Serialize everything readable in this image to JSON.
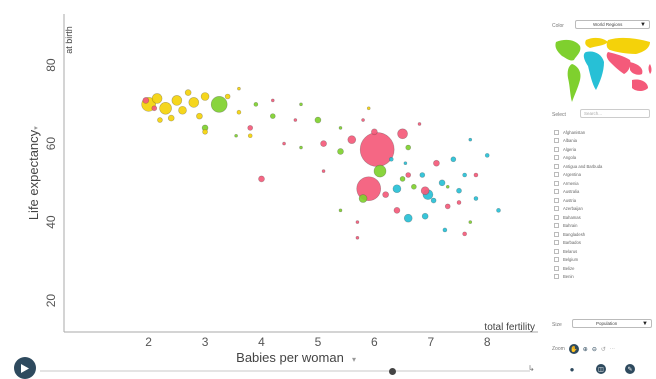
{
  "chart_data": {
    "type": "scatter",
    "xlabel": "Babies per woman",
    "xlabel_secondary": "total fertility",
    "ylabel": "Life expectancy",
    "ylabel_secondary": "at birth",
    "x_ticks": [
      2,
      3,
      4,
      5,
      6,
      7,
      8
    ],
    "y_ticks": [
      20,
      40,
      60,
      80
    ],
    "xlim": [
      0.5,
      8.9
    ],
    "ylim": [
      12,
      92
    ],
    "bubble_size": "population",
    "colors": {
      "yellow": "#f4d20a",
      "green": "#7fd02e",
      "red": "#f45a7a",
      "cyan": "#27c0d6"
    },
    "points": [
      {
        "x": 6.05,
        "y": 58.5,
        "r": 17,
        "c": "red"
      },
      {
        "x": 5.9,
        "y": 48.5,
        "r": 12,
        "c": "red"
      },
      {
        "x": 6.5,
        "y": 62.5,
        "r": 5,
        "c": "red"
      },
      {
        "x": 5.6,
        "y": 61,
        "r": 4,
        "c": "red"
      },
      {
        "x": 5.1,
        "y": 60,
        "r": 3,
        "c": "red"
      },
      {
        "x": 6.9,
        "y": 48,
        "r": 4,
        "c": "red"
      },
      {
        "x": 7.1,
        "y": 55,
        "r": 3,
        "c": "red"
      },
      {
        "x": 6.2,
        "y": 47,
        "r": 3,
        "c": "red"
      },
      {
        "x": 6.4,
        "y": 43,
        "r": 3,
        "c": "red"
      },
      {
        "x": 6.0,
        "y": 63,
        "r": 3,
        "c": "red"
      },
      {
        "x": 7.3,
        "y": 44,
        "r": 2.5,
        "c": "red"
      },
      {
        "x": 6.6,
        "y": 52,
        "r": 2.5,
        "c": "red"
      },
      {
        "x": 4.0,
        "y": 51,
        "r": 3,
        "c": "red"
      },
      {
        "x": 3.8,
        "y": 64,
        "r": 2.5,
        "c": "red"
      },
      {
        "x": 6.1,
        "y": 53,
        "r": 6,
        "c": "green"
      },
      {
        "x": 5.8,
        "y": 46,
        "r": 4,
        "c": "green"
      },
      {
        "x": 5.4,
        "y": 58,
        "r": 3,
        "c": "green"
      },
      {
        "x": 5.0,
        "y": 66,
        "r": 3,
        "c": "green"
      },
      {
        "x": 4.2,
        "y": 67,
        "r": 2.5,
        "c": "green"
      },
      {
        "x": 3.25,
        "y": 70,
        "r": 8,
        "c": "green"
      },
      {
        "x": 3.0,
        "y": 64,
        "r": 3,
        "c": "green"
      },
      {
        "x": 3.9,
        "y": 70,
        "r": 2,
        "c": "green"
      },
      {
        "x": 6.6,
        "y": 59,
        "r": 2.5,
        "c": "green"
      },
      {
        "x": 6.7,
        "y": 49,
        "r": 2.5,
        "c": "green"
      },
      {
        "x": 6.5,
        "y": 51,
        "r": 2.5,
        "c": "green"
      },
      {
        "x": 2.0,
        "y": 70,
        "r": 7,
        "c": "yellow"
      },
      {
        "x": 2.15,
        "y": 71.5,
        "r": 5,
        "c": "yellow"
      },
      {
        "x": 2.3,
        "y": 69,
        "r": 6,
        "c": "yellow"
      },
      {
        "x": 2.5,
        "y": 71,
        "r": 5,
        "c": "yellow"
      },
      {
        "x": 2.6,
        "y": 68.5,
        "r": 4,
        "c": "yellow"
      },
      {
        "x": 2.8,
        "y": 70.5,
        "r": 5,
        "c": "yellow"
      },
      {
        "x": 3.0,
        "y": 72,
        "r": 4,
        "c": "yellow"
      },
      {
        "x": 2.4,
        "y": 66.5,
        "r": 3,
        "c": "yellow"
      },
      {
        "x": 2.9,
        "y": 67,
        "r": 3,
        "c": "yellow"
      },
      {
        "x": 2.7,
        "y": 73,
        "r": 3,
        "c": "yellow"
      },
      {
        "x": 3.4,
        "y": 72,
        "r": 2.5,
        "c": "yellow"
      },
      {
        "x": 3.0,
        "y": 63,
        "r": 2.5,
        "c": "yellow"
      },
      {
        "x": 2.2,
        "y": 66,
        "r": 2.5,
        "c": "yellow"
      },
      {
        "x": 3.6,
        "y": 68,
        "r": 2,
        "c": "yellow"
      },
      {
        "x": 3.8,
        "y": 62,
        "r": 2,
        "c": "yellow"
      },
      {
        "x": 1.95,
        "y": 71,
        "r": 3,
        "c": "red"
      },
      {
        "x": 2.1,
        "y": 69,
        "r": 2.5,
        "c": "red"
      },
      {
        "x": 6.4,
        "y": 48.5,
        "r": 4,
        "c": "cyan"
      },
      {
        "x": 6.95,
        "y": 47,
        "r": 5,
        "c": "cyan"
      },
      {
        "x": 6.6,
        "y": 41,
        "r": 4,
        "c": "cyan"
      },
      {
        "x": 6.9,
        "y": 41.5,
        "r": 3,
        "c": "cyan"
      },
      {
        "x": 7.2,
        "y": 50,
        "r": 3,
        "c": "cyan"
      },
      {
        "x": 7.5,
        "y": 48,
        "r": 2.5,
        "c": "cyan"
      },
      {
        "x": 7.4,
        "y": 56,
        "r": 2.5,
        "c": "cyan"
      },
      {
        "x": 6.85,
        "y": 52,
        "r": 2.5,
        "c": "cyan"
      },
      {
        "x": 7.05,
        "y": 45.5,
        "r": 2.5,
        "c": "cyan"
      },
      {
        "x": 7.6,
        "y": 52,
        "r": 2,
        "c": "cyan"
      },
      {
        "x": 8.2,
        "y": 43,
        "r": 2,
        "c": "cyan"
      },
      {
        "x": 7.8,
        "y": 46,
        "r": 2,
        "c": "cyan"
      },
      {
        "x": 8.0,
        "y": 57,
        "r": 2,
        "c": "cyan"
      },
      {
        "x": 6.3,
        "y": 56,
        "r": 2,
        "c": "cyan"
      },
      {
        "x": 7.25,
        "y": 38,
        "r": 2,
        "c": "cyan"
      },
      {
        "x": 7.6,
        "y": 37,
        "r": 2,
        "c": "red"
      },
      {
        "x": 7.8,
        "y": 52,
        "r": 2,
        "c": "red"
      },
      {
        "x": 7.5,
        "y": 45,
        "r": 2,
        "c": "red"
      },
      {
        "x": 5.7,
        "y": 40,
        "r": 1.5,
        "c": "red"
      },
      {
        "x": 5.7,
        "y": 36,
        "r": 1.5,
        "c": "red"
      },
      {
        "x": 4.4,
        "y": 60,
        "r": 1.5,
        "c": "red"
      },
      {
        "x": 4.6,
        "y": 66,
        "r": 1.5,
        "c": "red"
      },
      {
        "x": 5.1,
        "y": 53,
        "r": 1.5,
        "c": "red"
      },
      {
        "x": 4.2,
        "y": 71,
        "r": 1.5,
        "c": "red"
      },
      {
        "x": 5.8,
        "y": 66,
        "r": 1.5,
        "c": "red"
      },
      {
        "x": 6.8,
        "y": 65,
        "r": 1.5,
        "c": "red"
      },
      {
        "x": 7.7,
        "y": 61,
        "r": 1.5,
        "c": "cyan"
      },
      {
        "x": 6.55,
        "y": 55,
        "r": 1.5,
        "c": "cyan"
      },
      {
        "x": 5.4,
        "y": 64,
        "r": 1.5,
        "c": "green"
      },
      {
        "x": 4.7,
        "y": 59,
        "r": 1.5,
        "c": "green"
      },
      {
        "x": 5.4,
        "y": 43,
        "r": 1.5,
        "c": "green"
      },
      {
        "x": 7.7,
        "y": 40,
        "r": 1.5,
        "c": "green"
      },
      {
        "x": 7.3,
        "y": 49,
        "r": 1.5,
        "c": "green"
      },
      {
        "x": 3.55,
        "y": 62,
        "r": 1.5,
        "c": "green"
      },
      {
        "x": 5.9,
        "y": 69,
        "r": 1.5,
        "c": "yellow"
      },
      {
        "x": 4.7,
        "y": 70,
        "r": 1.5,
        "c": "green"
      },
      {
        "x": 3.6,
        "y": 74,
        "r": 1.5,
        "c": "yellow"
      }
    ]
  },
  "side": {
    "color_label": "Color",
    "color_value": "World Regions",
    "select_label": "Select",
    "search_placeholder": "Search...",
    "countries": [
      "Afghanistan",
      "Albania",
      "Algeria",
      "Angola",
      "Antigua and Barbuda",
      "Argentina",
      "Armenia",
      "Australia",
      "Austria",
      "Azerbaijan",
      "Bahamas",
      "Bahrain",
      "Bangladesh",
      "Barbados",
      "Belarus",
      "Belgium",
      "Belize",
      "Benin"
    ],
    "size_label": "Size",
    "size_value": "Population",
    "zoom_label": "Zoom"
  },
  "timeline": {
    "position": 0.72
  }
}
